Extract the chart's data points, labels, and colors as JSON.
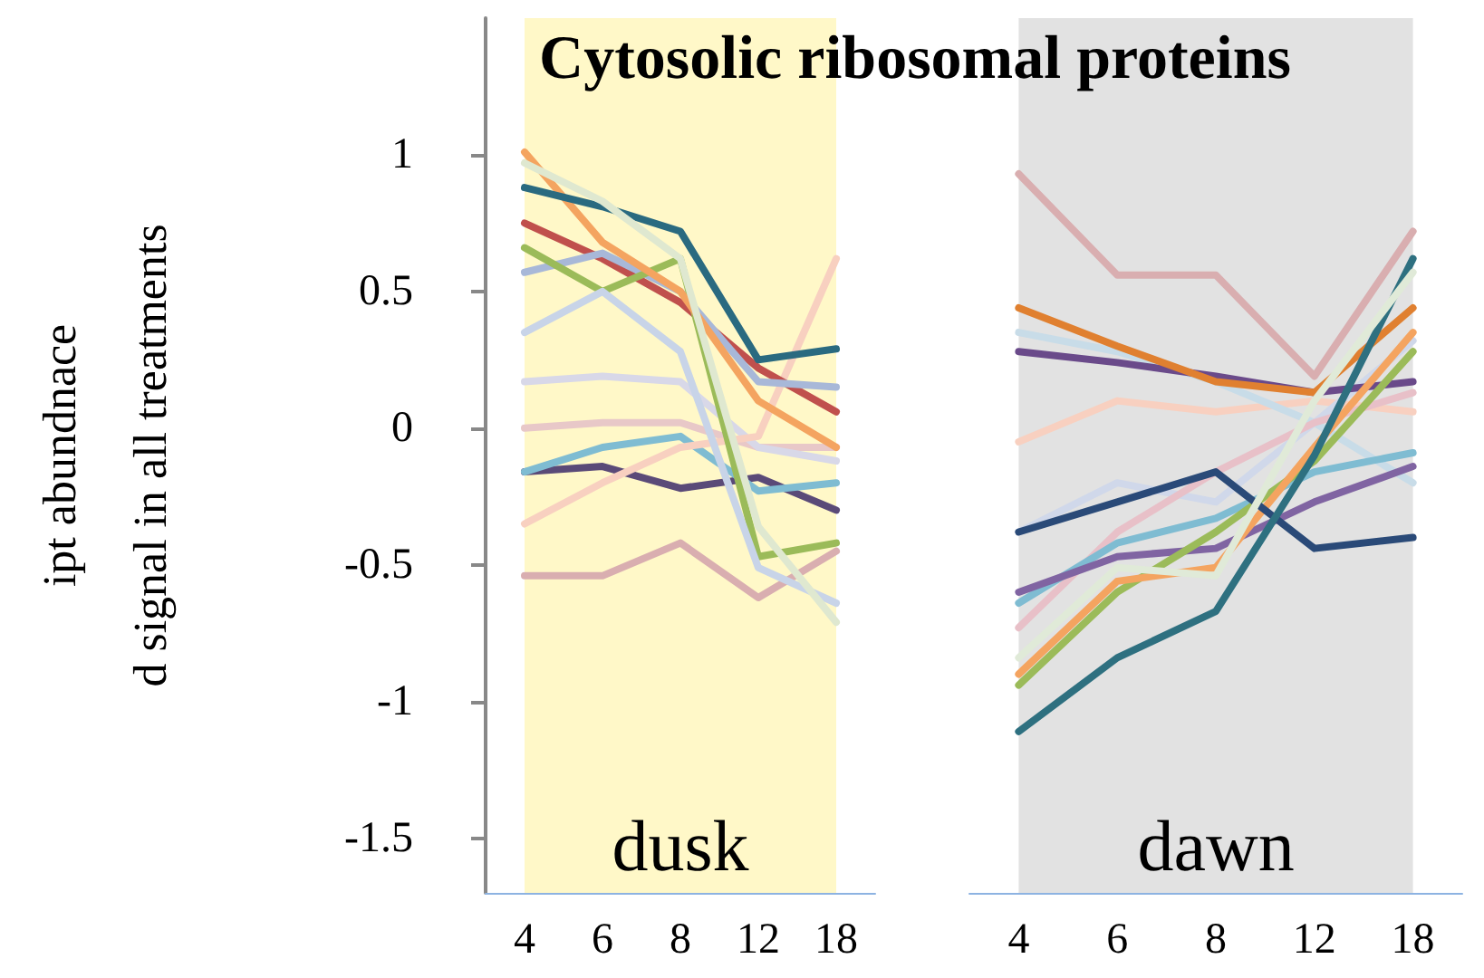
{
  "chart_data": [
    {
      "type": "line",
      "title": "Cytosolic ribosomal proteins",
      "ylabel": "ipt abundnace\nd signal in all treatments",
      "categories": [
        "4",
        "6",
        "8",
        "12",
        "18"
      ],
      "ylim": [
        -1.7,
        1.5
      ],
      "yticks": [
        -1.5,
        -1,
        -0.5,
        0,
        0.5,
        1
      ],
      "marker": "none",
      "line_style": "solid",
      "bands": [
        {
          "axis": "x",
          "from": "4",
          "to": "18",
          "label": "dusk",
          "color": "#fff8c8"
        }
      ],
      "series": [
        {
          "color": "#e8c8c8",
          "values": [
            0,
            0.02,
            0.02,
            -0.07,
            -0.07
          ]
        },
        {
          "color": "#d8d8e8",
          "values": [
            0.17,
            0.19,
            0.17,
            -0.07,
            -0.12
          ]
        },
        {
          "color": "#5a4a78",
          "values": [
            -0.16,
            -0.14,
            -0.22,
            -0.18,
            -0.3
          ]
        },
        {
          "color": "#7fbcd2",
          "values": [
            -0.16,
            -0.07,
            -0.03,
            -0.23,
            -0.2
          ]
        },
        {
          "color": "#d9aeb0",
          "values": [
            -0.54,
            -0.54,
            -0.42,
            -0.62,
            -0.45
          ]
        },
        {
          "color": "#f8d0c0",
          "values": [
            -0.35,
            -0.2,
            -0.07,
            -0.03,
            0.62
          ]
        },
        {
          "color": "#c0504d",
          "values": [
            0.75,
            0.62,
            0.46,
            0.22,
            0.06
          ]
        },
        {
          "color": "#a8b8d8",
          "values": [
            0.57,
            0.64,
            0.5,
            0.17,
            0.15
          ]
        },
        {
          "color": "#9bbb59",
          "values": [
            0.66,
            0.5,
            0.62,
            -0.47,
            -0.42
          ]
        },
        {
          "color": "#c8d4e8",
          "values": [
            0.35,
            0.5,
            0.28,
            -0.51,
            -0.64
          ]
        },
        {
          "color": "#f4a460",
          "values": [
            1.01,
            0.68,
            0.5,
            0.1,
            -0.07
          ]
        },
        {
          "color": "#2a6a80",
          "values": [
            0.88,
            0.81,
            0.72,
            0.25,
            0.29
          ]
        },
        {
          "color": "#dfe8d0",
          "values": [
            0.97,
            0.83,
            0.62,
            -0.36,
            -0.71
          ]
        }
      ]
    },
    {
      "type": "line",
      "categories": [
        "4",
        "6",
        "8",
        "12",
        "18"
      ],
      "ylim": [
        -1.7,
        1.5
      ],
      "yticks": [
        -1.5,
        -1,
        -0.5,
        0,
        0.5,
        1
      ],
      "tick_labels": "x",
      "marker": "none",
      "line_style": "solid",
      "bands": [
        {
          "axis": "x",
          "from": "4",
          "to": "18",
          "label": "dawn",
          "color": "#e2e2e2"
        }
      ],
      "series": [
        {
          "color": "#f8d0c0",
          "values": [
            -0.05,
            0.1,
            0.06,
            0.1,
            0.06
          ]
        },
        {
          "color": "#c8dce8",
          "values": [
            0.35,
            0.28,
            0.17,
            0.02,
            -0.2
          ]
        },
        {
          "color": "#d0d8ea",
          "values": [
            -0.38,
            -0.2,
            -0.27,
            0.02,
            0.32
          ]
        },
        {
          "color": "#e8c0c8",
          "values": [
            -0.73,
            -0.38,
            -0.16,
            0.02,
            0.13
          ]
        },
        {
          "color": "#7fbcd2",
          "values": [
            -0.64,
            -0.42,
            -0.33,
            -0.16,
            -0.09
          ]
        },
        {
          "color": "#8064a2",
          "values": [
            -0.6,
            -0.47,
            -0.44,
            -0.27,
            -0.14
          ]
        },
        {
          "color": "#6a4a8a",
          "values": [
            0.28,
            0.24,
            0.19,
            0.13,
            0.17
          ]
        },
        {
          "color": "#9bbb59",
          "values": [
            -0.94,
            -0.6,
            -0.38,
            -0.12,
            0.28
          ]
        },
        {
          "color": "#f4a460",
          "values": [
            -0.9,
            -0.56,
            -0.51,
            -0.07,
            0.35
          ]
        },
        {
          "color": "#e08030",
          "values": [
            0.44,
            0.3,
            0.17,
            0.13,
            0.44
          ]
        },
        {
          "color": "#2a4a78",
          "values": [
            -0.38,
            -0.27,
            -0.16,
            -0.44,
            -0.4
          ]
        },
        {
          "color": "#2e7080",
          "values": [
            -1.11,
            -0.84,
            -0.67,
            -0.1,
            0.62
          ]
        },
        {
          "color": "#e0ead8",
          "values": [
            -0.84,
            -0.51,
            -0.54,
            0.1,
            0.57
          ]
        },
        {
          "color": "#d9aeb0",
          "values": [
            0.93,
            0.56,
            0.56,
            0.19,
            0.72
          ]
        }
      ]
    }
  ]
}
